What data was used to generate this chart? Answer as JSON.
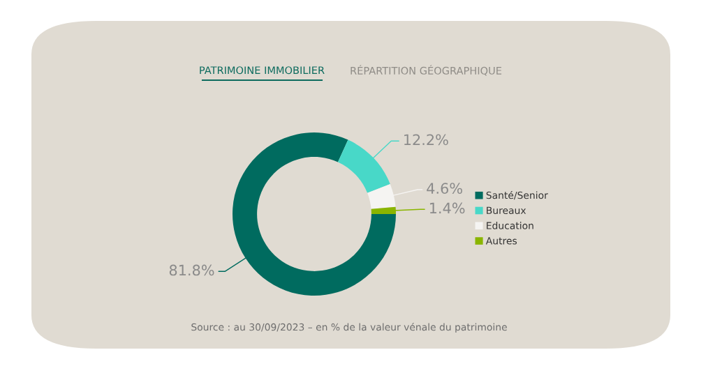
{
  "chart_data": {
    "type": "donut",
    "title": "PATRIMOINE IMMOBILIER",
    "subtitle": "RÉPARTITION GÉOGRAPHIQUE",
    "categories": [
      "Santé/Senior",
      "Bureaux",
      "Education",
      "Autres"
    ],
    "values": [
      81.8,
      12.2,
      4.6,
      1.4
    ],
    "colors": [
      "#006b5f",
      "#48d8c8",
      "#f5f4f2",
      "#8ab500"
    ],
    "value_labels": [
      "81.8%",
      "12.2%",
      "4.6%",
      "1.4%"
    ],
    "legend": "right",
    "annotations": [
      "Source : au 30/09/2023 – en % de la valeur vénale du patrimoine"
    ]
  }
}
